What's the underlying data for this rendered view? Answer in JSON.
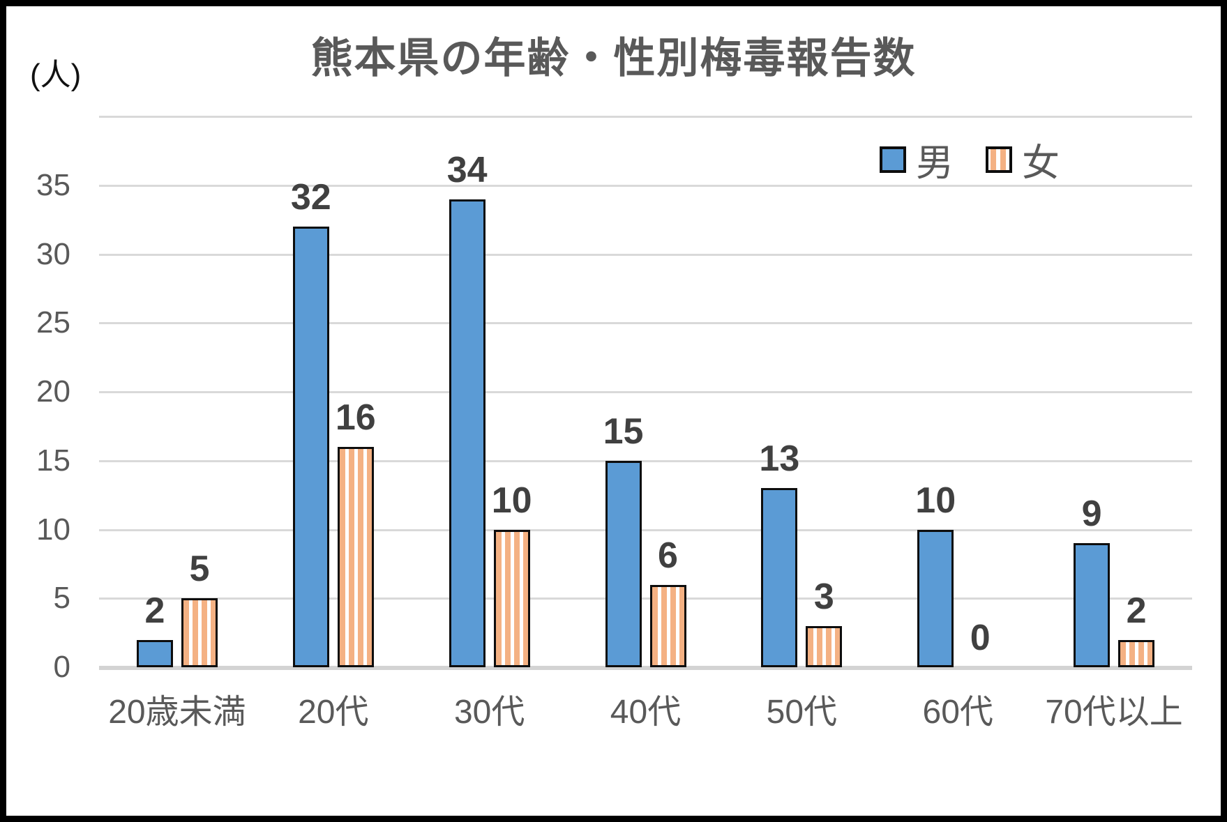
{
  "chart_data": {
    "type": "bar",
    "title": "熊本県の年齢・性別梅毒報告数",
    "unit_label": "(人)",
    "categories": [
      "20歳未満",
      "20代",
      "30代",
      "40代",
      "50代",
      "60代",
      "70代以上"
    ],
    "series": [
      {
        "name": "男",
        "style": "solid",
        "values": [
          2,
          32,
          34,
          15,
          13,
          10,
          9
        ]
      },
      {
        "name": "女",
        "style": "striped",
        "values": [
          5,
          16,
          10,
          6,
          3,
          0,
          2
        ]
      }
    ],
    "y_axis": {
      "min": 0,
      "max": 40,
      "tick_step": 5,
      "labeled_ticks": [
        0,
        5,
        10,
        15,
        20,
        25,
        30,
        35
      ]
    },
    "grid": true,
    "legend_position": "top-right",
    "data_labels_shown": true,
    "colors": {
      "male_fill": "#5B9BD5",
      "female_stripe": "#F4B183",
      "bar_border": "#0d0d0d",
      "gridline": "#D9D9D9",
      "axis_line": "#D3D3D3",
      "title_text": "#595959",
      "tick_text": "#595959",
      "data_label_text": "#404040",
      "unit_text": "#111111"
    }
  }
}
